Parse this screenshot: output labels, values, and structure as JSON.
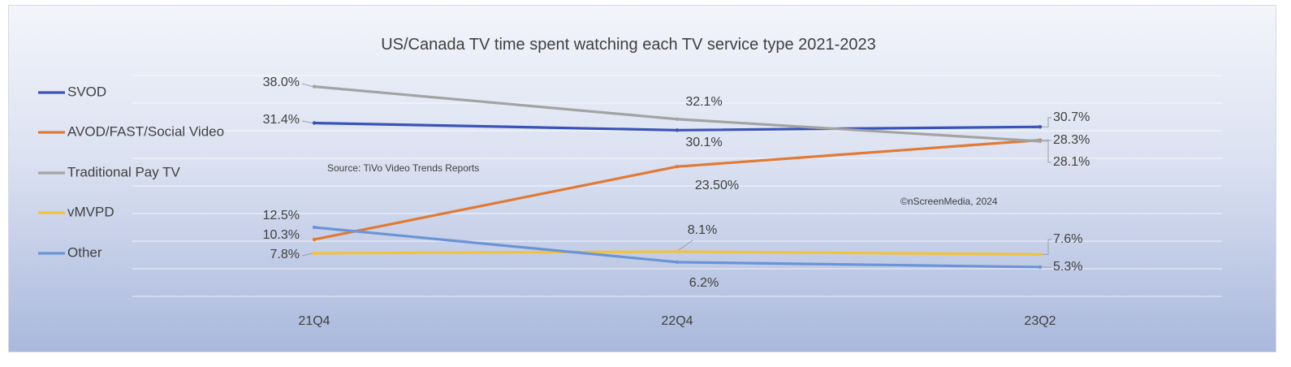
{
  "chart_data": {
    "type": "line",
    "title": "US/Canada TV time spent watching each TV service type 2021-2023",
    "categories": [
      "21Q4",
      "22Q4",
      "23Q2"
    ],
    "ylim": [
      0,
      45
    ],
    "grid": true,
    "legend_position": "left",
    "series": [
      {
        "name": "SVOD",
        "color": "#3a53b8",
        "values": [
          31.4,
          30.1,
          30.7
        ],
        "labels": [
          "31.4%",
          "30.1%",
          "30.7%"
        ]
      },
      {
        "name": "AVOD/FAST/Social Video",
        "color": "#e07a35",
        "values": [
          10.3,
          23.5,
          28.3
        ],
        "labels": [
          "10.3%",
          "23.50%",
          "28.3%"
        ]
      },
      {
        "name": "Traditional Pay TV",
        "color": "#a3a3a3",
        "values": [
          38.0,
          32.1,
          28.1
        ],
        "labels": [
          "38.0%",
          "32.1%",
          "28.1%"
        ]
      },
      {
        "name": "vMVPD",
        "color": "#f2c23c",
        "values": [
          7.8,
          8.1,
          7.6
        ],
        "labels": [
          "7.8%",
          "8.1%",
          "7.6%"
        ]
      },
      {
        "name": "Other",
        "color": "#6b94d6",
        "values": [
          12.5,
          6.2,
          5.3
        ],
        "labels": [
          "12.5%",
          "6.2%",
          "5.3%"
        ]
      }
    ],
    "annotations": [
      "Source: TiVo Video Trends Reports",
      "©nScreenMedia, 2024"
    ]
  }
}
